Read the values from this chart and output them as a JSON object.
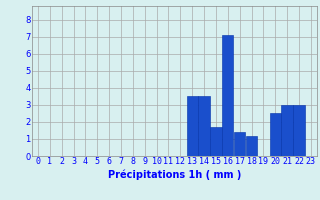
{
  "hours": [
    0,
    1,
    2,
    3,
    4,
    5,
    6,
    7,
    8,
    9,
    10,
    11,
    12,
    13,
    14,
    15,
    16,
    17,
    18,
    19,
    20,
    21,
    22,
    23
  ],
  "values": [
    0,
    0,
    0,
    0,
    0,
    0,
    0,
    0,
    0,
    0,
    0,
    0,
    0,
    3.5,
    3.5,
    1.7,
    7.1,
    1.4,
    1.2,
    0,
    2.5,
    3.0,
    3.0,
    0
  ],
  "bar_color": "#1a4fcc",
  "bar_edge_color": "#0030aa",
  "background_color": "#d8f0f0",
  "grid_color": "#aaaaaa",
  "xlabel": "Précipitations 1h ( mm )",
  "xlabel_fontsize": 7,
  "ylabel_ticks": [
    0,
    1,
    2,
    3,
    4,
    5,
    6,
    7,
    8
  ],
  "ylim": [
    0,
    8.8
  ],
  "xlim": [
    -0.5,
    23.5
  ],
  "tick_fontsize": 6
}
